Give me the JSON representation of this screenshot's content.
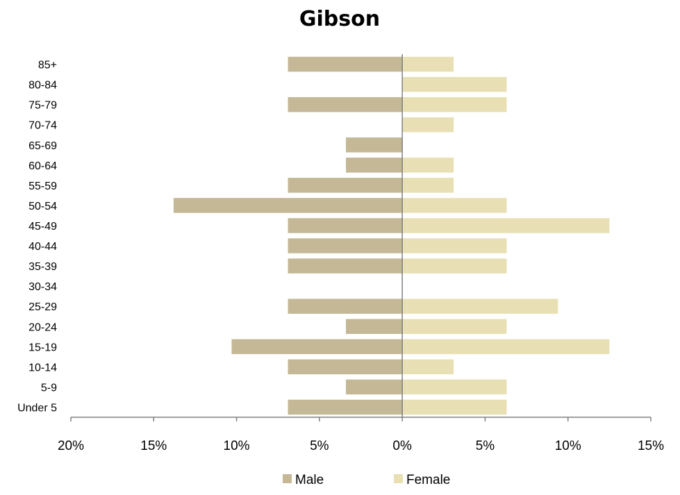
{
  "chart_data": {
    "type": "bar",
    "orientation": "horizontal",
    "subtype": "population-pyramid",
    "title": "Gibson",
    "categories": [
      "85+",
      "80-84",
      "75-79",
      "70-74",
      "65-69",
      "60-64",
      "55-59",
      "50-54",
      "45-49",
      "40-44",
      "35-39",
      "30-34",
      "25-29",
      "20-24",
      "15-19",
      "10-14",
      "5-9",
      "Under 5"
    ],
    "series": [
      {
        "name": "Male",
        "color": "#c4b896",
        "values": [
          6.9,
          0,
          6.9,
          0,
          3.4,
          3.4,
          6.9,
          13.8,
          6.9,
          6.9,
          6.9,
          0,
          6.9,
          3.4,
          10.3,
          6.9,
          3.4,
          6.9
        ]
      },
      {
        "name": "Female",
        "color": "#e8e0b4",
        "values": [
          3.1,
          6.3,
          6.3,
          3.1,
          0,
          3.1,
          3.1,
          6.3,
          12.5,
          6.3,
          6.3,
          0,
          9.4,
          6.3,
          12.5,
          3.1,
          6.3,
          6.3
        ]
      }
    ],
    "xlim": [
      -20,
      15
    ],
    "xticks": [
      -20,
      -15,
      -10,
      -5,
      0,
      5,
      10,
      15
    ],
    "xtick_labels": [
      "20%",
      "15%",
      "10%",
      "5%",
      "0%",
      "5%",
      "10%",
      "15%"
    ],
    "grid": false,
    "legend_position": "bottom"
  }
}
